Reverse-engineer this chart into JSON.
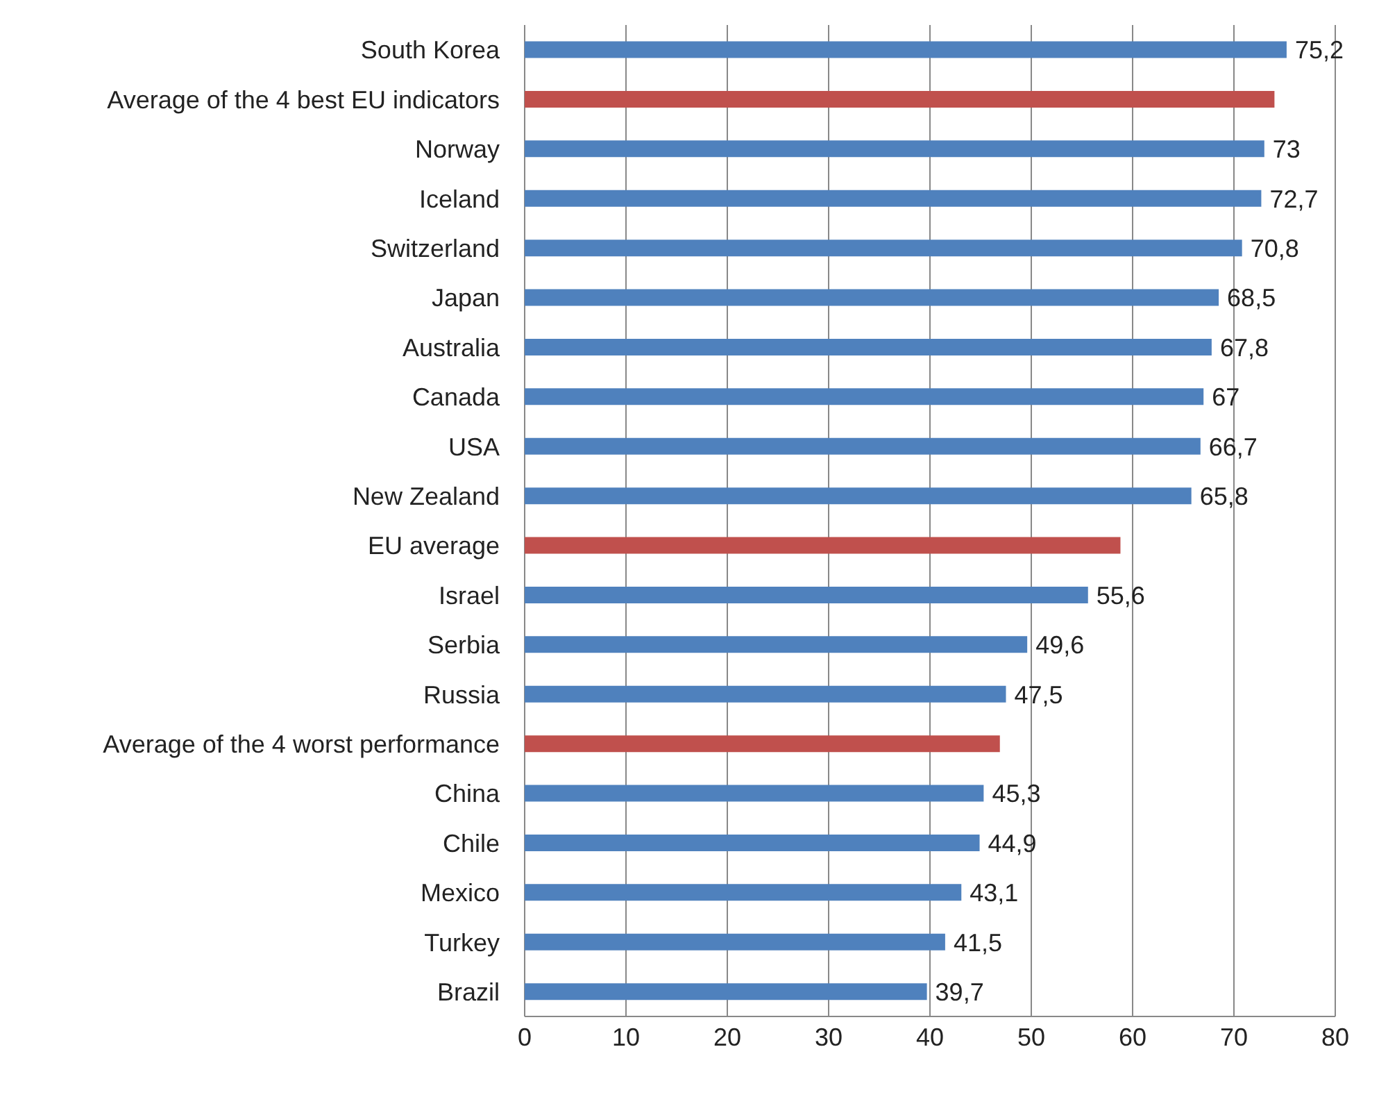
{
  "chart_data": {
    "type": "bar",
    "orientation": "horizontal",
    "categories": [
      "South Korea",
      "Average of the 4 best EU indicators",
      "Norway",
      "Iceland",
      "Switzerland",
      "Japan",
      "Australia",
      "Canada",
      "USA",
      "New Zealand",
      "EU average",
      "Israel",
      "Serbia",
      "Russia",
      "Average of the 4 worst performance",
      "China",
      "Chile",
      "Mexico",
      "Turkey",
      "Brazil"
    ],
    "values": [
      75.2,
      74,
      73,
      72.7,
      70.8,
      68.5,
      67.8,
      67,
      66.7,
      65.8,
      58.8,
      55.6,
      49.6,
      47.5,
      46.9,
      45.3,
      44.9,
      43.1,
      41.5,
      39.7
    ],
    "colors": [
      "#4f81bd",
      "#c0504d",
      "#4f81bd",
      "#4f81bd",
      "#4f81bd",
      "#4f81bd",
      "#4f81bd",
      "#4f81bd",
      "#4f81bd",
      "#4f81bd",
      "#c0504d",
      "#4f81bd",
      "#4f81bd",
      "#4f81bd",
      "#c0504d",
      "#4f81bd",
      "#4f81bd",
      "#4f81bd",
      "#4f81bd",
      "#4f81bd"
    ],
    "value_labels": [
      "75,2",
      null,
      "73",
      "72,7",
      "70,8",
      "68,5",
      "67,8",
      "67",
      "66,7",
      "65,8",
      null,
      "55,6",
      "49,6",
      "47,5",
      null,
      "45,3",
      "44,9",
      "43,1",
      "41,5",
      "39,7"
    ],
    "xlim": [
      0,
      80
    ],
    "xticks": [
      0,
      10,
      20,
      30,
      40,
      50,
      60,
      70,
      80
    ],
    "grid": "x"
  }
}
